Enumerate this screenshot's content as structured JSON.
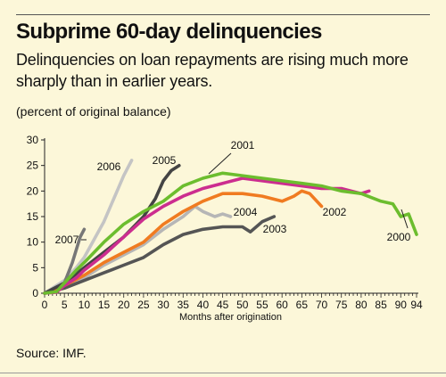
{
  "header": {
    "title": "Subprime 60-day delinquencies",
    "subtitle": "Delinquencies on loan repayments are rising much more sharply than in earlier years.",
    "unit_label": "(percent of original balance)"
  },
  "footer": {
    "source": "Source: IMF."
  },
  "chart_data": {
    "type": "line",
    "title": "Subprime 60-day delinquencies",
    "xlabel": "Months after origination",
    "ylabel": "(percent of original balance)",
    "xlim": [
      0,
      95
    ],
    "ylim": [
      0,
      30
    ],
    "x_ticks": [
      "0",
      "5",
      "10",
      "15",
      "20",
      "25",
      "30",
      "35",
      "40",
      "45",
      "50",
      "55",
      "60",
      "65",
      "70",
      "75",
      "80",
      "85",
      "90",
      "94"
    ],
    "y_ticks": [
      "0",
      "5",
      "10",
      "15",
      "20",
      "25",
      "30"
    ],
    "grid": false,
    "series": [
      {
        "name": "2000",
        "color": "#6cbd2e",
        "x": [
          0,
          3,
          5,
          8,
          10,
          15,
          20,
          25,
          30,
          35,
          40,
          45,
          50,
          55,
          60,
          65,
          70,
          75,
          80,
          85,
          88,
          90,
          92,
          94
        ],
        "y": [
          0,
          0.3,
          2,
          4.5,
          6,
          10,
          13.5,
          16,
          18,
          21,
          22.5,
          23.5,
          23,
          22.5,
          22,
          21.5,
          21,
          20,
          19.5,
          18,
          17.5,
          15,
          15.5,
          11.5
        ]
      },
      {
        "name": "2001",
        "color": "#cc2d8f",
        "x": [
          0,
          3,
          5,
          8,
          10,
          15,
          20,
          25,
          30,
          35,
          40,
          45,
          50,
          55,
          60,
          65,
          70,
          75,
          80,
          82
        ],
        "y": [
          0,
          0.2,
          1.5,
          3,
          4.5,
          7.5,
          11,
          14.5,
          17,
          19,
          20.5,
          21.5,
          22.5,
          22,
          21.5,
          21,
          20.5,
          20.5,
          19.5,
          20
        ]
      },
      {
        "name": "2002",
        "color": "#f07b21",
        "x": [
          0,
          5,
          10,
          15,
          20,
          25,
          30,
          35,
          40,
          45,
          50,
          55,
          60,
          63,
          65,
          67,
          70
        ],
        "y": [
          0,
          1.5,
          3.5,
          6,
          8,
          10,
          13.5,
          16,
          18,
          19.5,
          19.5,
          19,
          18,
          19,
          20,
          19.5,
          17
        ]
      },
      {
        "name": "2003",
        "color": "#555555",
        "x": [
          0,
          5,
          10,
          15,
          20,
          25,
          30,
          35,
          40,
          45,
          50,
          52,
          55,
          58
        ],
        "y": [
          0,
          1,
          2.5,
          4,
          5.5,
          7,
          9.5,
          11.5,
          12.5,
          13,
          13,
          12,
          14,
          15
        ]
      },
      {
        "name": "2004",
        "color": "#b6b6b6",
        "x": [
          0,
          5,
          10,
          15,
          20,
          25,
          30,
          35,
          38,
          40,
          43,
          45,
          47
        ],
        "y": [
          0,
          1.5,
          3,
          5.5,
          7.5,
          9.5,
          12.5,
          15,
          17,
          16,
          15,
          15.5,
          15
        ]
      },
      {
        "name": "2005",
        "color": "#444444",
        "x": [
          0,
          5,
          10,
          15,
          20,
          25,
          28,
          30,
          32,
          34
        ],
        "y": [
          0,
          2,
          5,
          8,
          11,
          15,
          18.5,
          22,
          24,
          25
        ]
      },
      {
        "name": "2006",
        "color": "#c4c4c4",
        "x": [
          0,
          5,
          8,
          10,
          15,
          20,
          22
        ],
        "y": [
          0,
          2.5,
          5,
          7,
          14,
          23,
          26
        ]
      },
      {
        "name": "2007",
        "color": "#777777",
        "x": [
          0,
          3,
          5,
          7,
          9,
          10
        ],
        "y": [
          0,
          0.3,
          2,
          6,
          11,
          12.5
        ]
      }
    ]
  }
}
